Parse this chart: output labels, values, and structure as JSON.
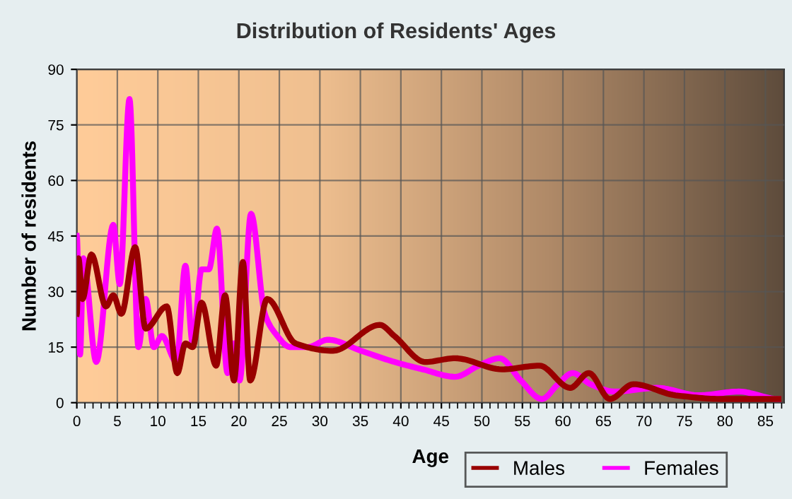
{
  "chart_data": {
    "type": "line",
    "title": "Distribution of Residents' Ages",
    "xlabel": "Age",
    "ylabel": "Number of residents",
    "xlim": [
      0,
      87.3
    ],
    "xticks": [
      0,
      5,
      10,
      15,
      20,
      25,
      30,
      35,
      40,
      45,
      50,
      55,
      60,
      65,
      70,
      75,
      80,
      85
    ],
    "ylim": [
      0,
      90
    ],
    "yticks": [
      0,
      15,
      30,
      45,
      60,
      75,
      90
    ],
    "grid": true,
    "legend": "bottom right",
    "marker": "none",
    "line_style": "solid",
    "series": [
      {
        "name": "Males",
        "color": "#990000",
        "x": [
          0,
          0.2,
          0.7,
          1.8,
          3.6,
          4.5,
          5.5,
          7.2,
          8.5,
          11.1,
          12.4,
          13.4,
          14.3,
          15.4,
          17.2,
          18.3,
          19.4,
          20.5,
          21.4,
          23.5,
          27,
          31.6,
          37.4,
          39.2,
          43,
          46.7,
          52.5,
          57.1,
          60.9,
          63.2,
          65.8,
          68.7,
          73.9,
          79.7,
          86.6
        ],
        "values": [
          24,
          39,
          28,
          40,
          26,
          29,
          24,
          42,
          20,
          26,
          8,
          16,
          15,
          27,
          10,
          29,
          6,
          38,
          6,
          28,
          16,
          14,
          21,
          18,
          11,
          12,
          9,
          10,
          4,
          8,
          1,
          5,
          2,
          1,
          1
        ]
      },
      {
        "name": "Females",
        "color": "#ff00ff",
        "x": [
          0,
          0.4,
          0.8,
          2.4,
          4.5,
          5.3,
          6.5,
          7.6,
          8.5,
          9.5,
          10.5,
          12.3,
          13.4,
          14.3,
          15.4,
          16.3,
          17.3,
          18.6,
          19.4,
          20.1,
          21.5,
          23.2,
          24.4,
          26.4,
          28.5,
          31,
          35.1,
          39.2,
          42.7,
          46.7,
          49.6,
          52.2,
          54.8,
          57.4,
          59.4,
          61.2,
          63.4,
          66.4,
          71.6,
          76.8,
          81.7,
          86.6
        ],
        "values": [
          45,
          13,
          39,
          11,
          48,
          32,
          82,
          15,
          28,
          15,
          18,
          11,
          37,
          16,
          36,
          36,
          47,
          8,
          16,
          6,
          51,
          24,
          19,
          15,
          15,
          17,
          14,
          11,
          9,
          7,
          10,
          12,
          6,
          1,
          5,
          8,
          5,
          3,
          4,
          2,
          3,
          1
        ]
      }
    ]
  }
}
